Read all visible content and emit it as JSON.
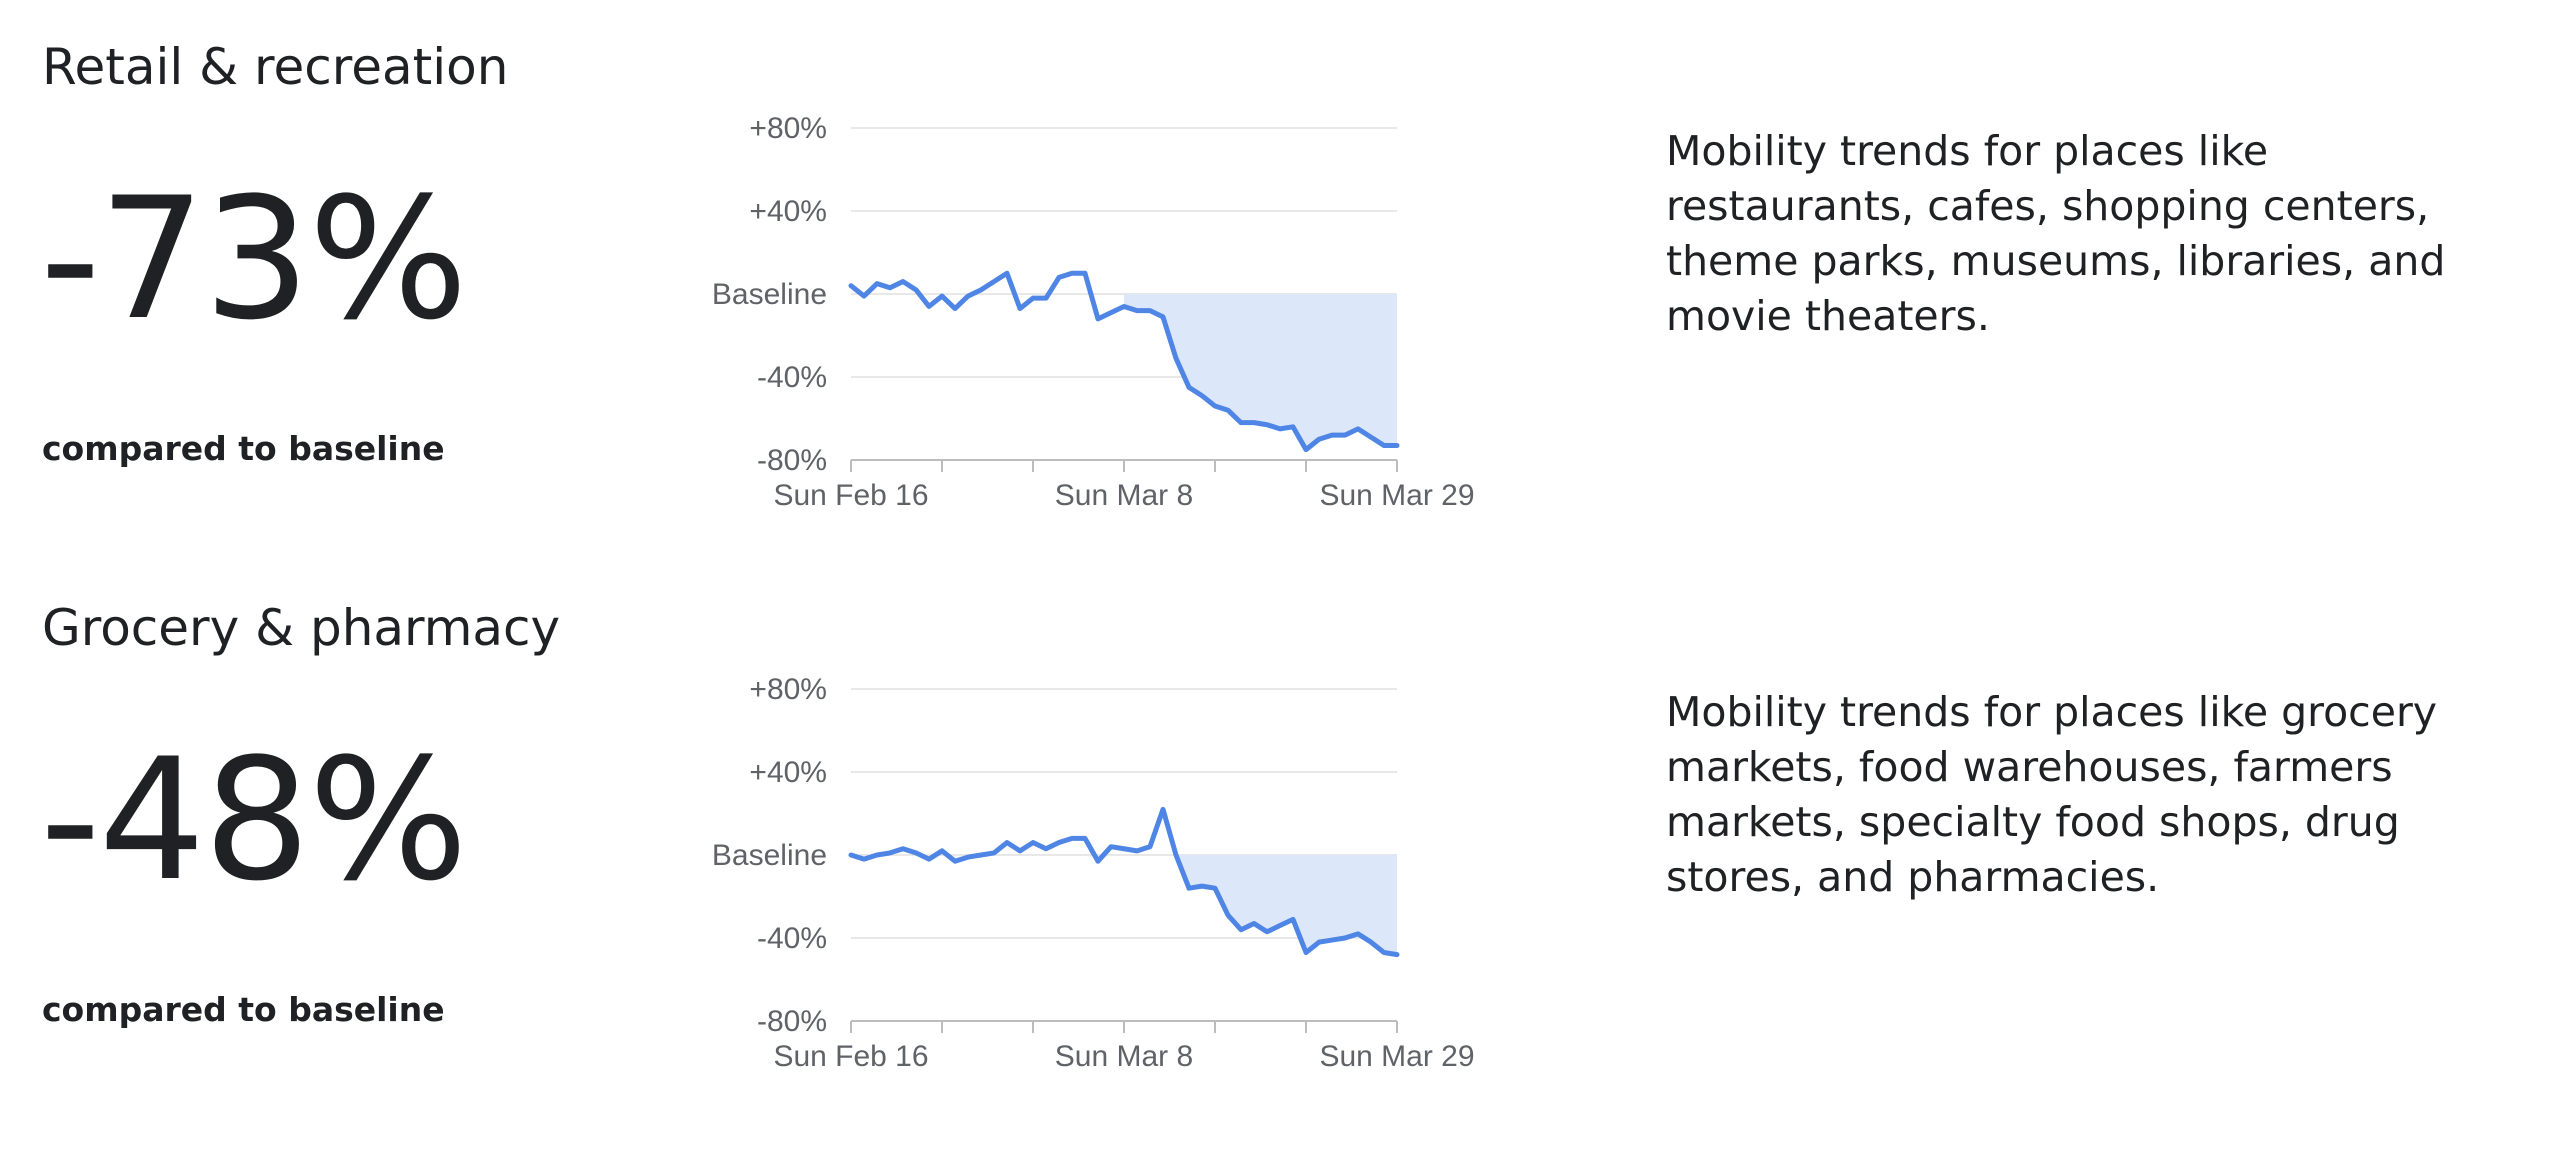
{
  "panels": [
    {
      "title": "Retail & recreation",
      "value": "-73%",
      "compared_label": "compared to baseline",
      "description": "Mobility trends for places like restaurants, cafes, shopping centers, theme parks, museums, libraries, and movie theaters."
    },
    {
      "title": "Grocery & pharmacy",
      "value": "-48%",
      "compared_label": "compared to baseline",
      "description": "Mobility trends for places like grocery markets, food warehouses, farmers markets, specialty food shops, drug stores, and pharmacies."
    }
  ],
  "colors": {
    "line": "#4f86e6",
    "fill": "#dce7fa",
    "grid": "#e0e0e0",
    "axis": "#bdbdbd",
    "text": "#202124",
    "tick_text": "#5f6368"
  },
  "chart_data": [
    {
      "type": "area",
      "title": "",
      "xlabel": "",
      "ylabel": "",
      "ylim": [
        -80,
        80
      ],
      "yticks": [
        {
          "value": 80,
          "label": "+80%"
        },
        {
          "value": 40,
          "label": "+40%"
        },
        {
          "value": 0,
          "label": "Baseline"
        },
        {
          "value": -40,
          "label": "-40%"
        },
        {
          "value": -80,
          "label": "-80%"
        }
      ],
      "xticks": [
        "Sun Feb 16",
        "Sun Mar 8",
        "Sun Mar 29"
      ],
      "x_start": "2020-02-16",
      "grid": true,
      "fill_below_baseline_from": "2020-03-08",
      "values": [
        4,
        -1,
        5,
        3,
        6,
        2,
        -6,
        -1,
        -7,
        -1,
        2,
        6,
        10,
        -7,
        -2,
        -2,
        8,
        10,
        10,
        -12,
        -9,
        -6,
        -8,
        -8,
        -11,
        -31,
        -45,
        -49,
        -54,
        -56,
        -62,
        -62,
        -63,
        -65,
        -64,
        -75,
        -70,
        -68,
        -68,
        -65,
        -69,
        -73,
        -73
      ]
    },
    {
      "type": "area",
      "title": "",
      "xlabel": "",
      "ylabel": "",
      "ylim": [
        -80,
        80
      ],
      "yticks": [
        {
          "value": 80,
          "label": "+80%"
        },
        {
          "value": 40,
          "label": "+40%"
        },
        {
          "value": 0,
          "label": "Baseline"
        },
        {
          "value": -40,
          "label": "-40%"
        },
        {
          "value": -80,
          "label": "-80%"
        }
      ],
      "xticks": [
        "Sun Feb 16",
        "Sun Mar 8",
        "Sun Mar 29"
      ],
      "x_start": "2020-02-16",
      "grid": true,
      "fill_below_baseline_from": "2020-03-08",
      "values": [
        0,
        -2,
        0,
        1,
        3,
        1,
        -2,
        2,
        -3,
        -1,
        0,
        1,
        6,
        2,
        6,
        3,
        6,
        8,
        8,
        -3,
        4,
        3,
        2,
        4,
        22,
        0,
        -16,
        -15,
        -16,
        -29,
        -36,
        -33,
        -37,
        -34,
        -31,
        -47,
        -42,
        -41,
        -40,
        -38,
        -42,
        -47,
        -48
      ]
    }
  ]
}
